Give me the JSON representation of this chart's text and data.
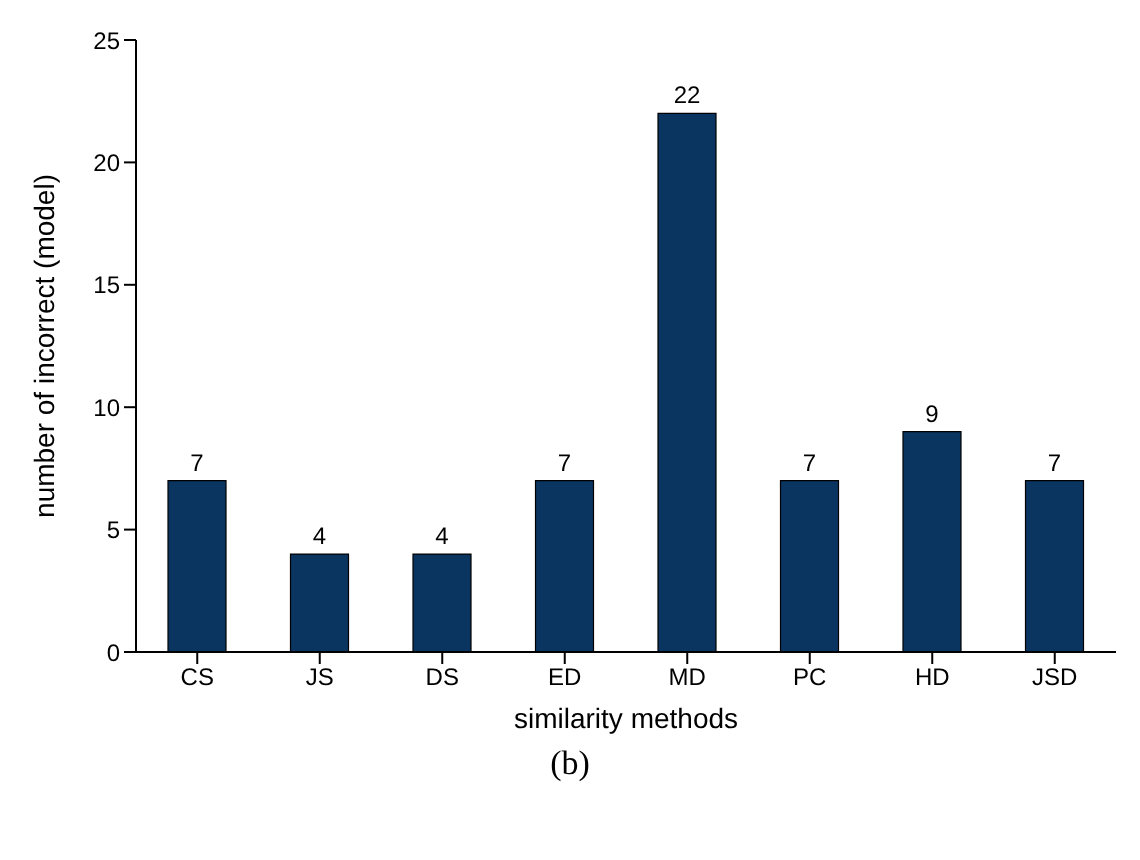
{
  "chart_data": {
    "type": "bar",
    "xlabel": "similarity methods",
    "ylabel": "number of incorrect (model)",
    "categories": [
      "CS",
      "JS",
      "DS",
      "ED",
      "MD",
      "PC",
      "HD",
      "JSD"
    ],
    "values": [
      7,
      4,
      4,
      7,
      22,
      7,
      9,
      7
    ],
    "color": "#0b3561",
    "ylim": [
      0,
      25
    ],
    "yticks": [
      0,
      5,
      10,
      15,
      20,
      25
    ],
    "grid": false,
    "data_labels": true,
    "annotations": [
      "(b)"
    ]
  }
}
